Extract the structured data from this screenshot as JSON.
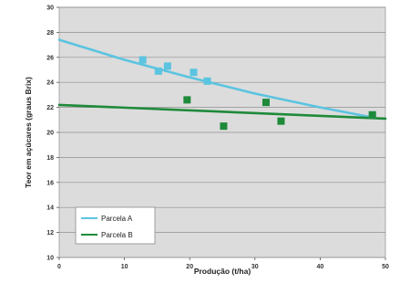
{
  "chart_data": {
    "type": "scatter",
    "title": "",
    "xlabel": "Produção (t/ha)",
    "ylabel": "Teor em açúcares (graus Brix)",
    "xlim": [
      0,
      50
    ],
    "ylim": [
      10,
      30
    ],
    "x_ticks": [
      "0",
      "10",
      "20",
      "30",
      "40",
      "50"
    ],
    "y_ticks": [
      "10",
      "12",
      "14",
      "16",
      "18",
      "20",
      "22",
      "24",
      "26",
      "28",
      "30"
    ],
    "grid": "horizontal",
    "plot_background": "#dcdcdc",
    "legend_position": "bottom-left",
    "series": [
      {
        "name": "Parcela A",
        "color": "#5bc4e0",
        "marker": "square",
        "points": [
          [
            12.8,
            25.8
          ],
          [
            15.2,
            24.9
          ],
          [
            16.6,
            25.3
          ],
          [
            20.6,
            24.8
          ],
          [
            22.7,
            24.1
          ],
          [
            48.0,
            21.4
          ]
        ],
        "trend": [
          [
            0,
            27.4
          ],
          [
            10,
            25.8
          ],
          [
            20,
            24.4
          ],
          [
            30,
            23.1
          ],
          [
            40,
            22.0
          ],
          [
            48,
            21.2
          ]
        ]
      },
      {
        "name": "Parcela B",
        "color": "#1f8a3a",
        "marker": "square",
        "points": [
          [
            19.6,
            22.6
          ],
          [
            25.2,
            20.5
          ],
          [
            31.7,
            22.4
          ],
          [
            34.0,
            20.9
          ],
          [
            48.0,
            21.4
          ]
        ],
        "trend": [
          [
            0,
            22.2
          ],
          [
            50,
            21.1
          ]
        ]
      }
    ]
  }
}
